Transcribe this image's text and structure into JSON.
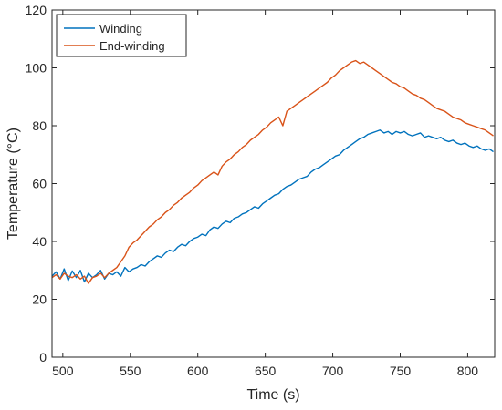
{
  "chart_data": {
    "type": "line",
    "xlabel": "Time (s)",
    "ylabel": "Temperature (°C)",
    "xlim": [
      492,
      820
    ],
    "ylim": [
      0,
      120
    ],
    "xticks": [
      500,
      550,
      600,
      650,
      700,
      750,
      800
    ],
    "yticks": [
      0,
      20,
      40,
      60,
      80,
      100,
      120
    ],
    "grid": false,
    "legend_position": "top-left",
    "series": [
      {
        "name": "Winding",
        "color": "#0072BD",
        "x": [
          492,
          495,
          498,
          501,
          504,
          507,
          510,
          513,
          516,
          519,
          522,
          525,
          528,
          531,
          534,
          537,
          540,
          543,
          546,
          549,
          552,
          555,
          558,
          561,
          564,
          567,
          570,
          573,
          576,
          579,
          582,
          585,
          588,
          591,
          594,
          597,
          600,
          603,
          606,
          609,
          612,
          615,
          618,
          621,
          624,
          627,
          630,
          633,
          636,
          639,
          642,
          645,
          648,
          651,
          654,
          657,
          660,
          663,
          666,
          669,
          672,
          675,
          678,
          681,
          684,
          687,
          690,
          693,
          696,
          699,
          702,
          705,
          708,
          711,
          714,
          717,
          720,
          723,
          726,
          729,
          732,
          735,
          738,
          741,
          744,
          747,
          750,
          753,
          756,
          759,
          762,
          765,
          768,
          771,
          774,
          777,
          780,
          783,
          786,
          789,
          792,
          795,
          798,
          801,
          804,
          807,
          810,
          813,
          816,
          819
        ],
        "y": [
          28.0,
          29.5,
          27.0,
          30.5,
          26.5,
          29.8,
          27.5,
          30.0,
          26.0,
          29.0,
          27.5,
          28.5,
          30.0,
          27.0,
          29.0,
          28.5,
          29.5,
          28.0,
          31.0,
          29.5,
          30.5,
          31.0,
          32.0,
          31.5,
          33.0,
          34.0,
          35.0,
          34.5,
          36.0,
          37.0,
          36.5,
          38.0,
          39.0,
          38.5,
          40.0,
          41.0,
          41.5,
          42.5,
          42.0,
          44.0,
          45.0,
          44.5,
          46.0,
          47.0,
          46.5,
          48.0,
          48.5,
          49.5,
          50.0,
          51.0,
          52.0,
          51.5,
          53.0,
          54.0,
          55.0,
          56.0,
          56.5,
          58.0,
          59.0,
          59.5,
          60.5,
          61.5,
          62.0,
          62.5,
          64.0,
          65.0,
          65.5,
          66.5,
          67.5,
          68.5,
          69.5,
          70.0,
          71.5,
          72.5,
          73.5,
          74.5,
          75.5,
          76.0,
          77.0,
          77.5,
          78.0,
          78.5,
          77.5,
          78.0,
          77.0,
          78.0,
          77.5,
          78.0,
          77.0,
          76.5,
          77.0,
          77.5,
          76.0,
          76.5,
          76.0,
          75.5,
          76.0,
          75.0,
          74.5,
          75.0,
          74.0,
          73.5,
          74.0,
          73.0,
          72.5,
          73.0,
          72.0,
          71.5,
          72.0,
          71.0
        ]
      },
      {
        "name": "End-winding",
        "color": "#D95319",
        "x": [
          492,
          495,
          498,
          501,
          504,
          507,
          510,
          513,
          516,
          519,
          522,
          525,
          528,
          531,
          534,
          537,
          540,
          543,
          546,
          549,
          552,
          555,
          558,
          561,
          564,
          567,
          570,
          573,
          576,
          579,
          582,
          585,
          588,
          591,
          594,
          597,
          600,
          603,
          606,
          609,
          612,
          615,
          618,
          621,
          624,
          627,
          630,
          633,
          636,
          639,
          642,
          645,
          648,
          651,
          654,
          657,
          660,
          663,
          666,
          669,
          672,
          675,
          678,
          681,
          684,
          687,
          690,
          693,
          696,
          699,
          702,
          705,
          708,
          711,
          714,
          717,
          720,
          723,
          726,
          729,
          732,
          735,
          738,
          741,
          744,
          747,
          750,
          753,
          756,
          759,
          762,
          765,
          768,
          771,
          774,
          777,
          780,
          783,
          786,
          789,
          792,
          795,
          798,
          801,
          804,
          807,
          810,
          813,
          816,
          819
        ],
        "y": [
          27.5,
          28.5,
          27.0,
          29.0,
          28.0,
          27.5,
          28.5,
          27.0,
          28.0,
          25.5,
          27.5,
          28.0,
          29.0,
          27.5,
          29.0,
          30.0,
          31.0,
          33.0,
          35.0,
          38.0,
          39.5,
          40.5,
          42.0,
          43.5,
          45.0,
          46.0,
          47.5,
          48.5,
          50.0,
          51.0,
          52.5,
          53.5,
          55.0,
          56.0,
          57.0,
          58.5,
          59.5,
          61.0,
          62.0,
          63.0,
          64.0,
          63.0,
          66.0,
          67.5,
          68.5,
          70.0,
          71.0,
          72.5,
          73.5,
          75.0,
          76.0,
          77.0,
          78.5,
          79.5,
          81.0,
          82.0,
          83.0,
          80.0,
          85.0,
          86.0,
          87.0,
          88.0,
          89.0,
          90.0,
          91.0,
          92.0,
          93.0,
          94.0,
          95.0,
          96.5,
          97.5,
          99.0,
          100.0,
          101.0,
          102.0,
          102.5,
          101.5,
          102.0,
          101.0,
          100.0,
          99.0,
          98.0,
          97.0,
          96.0,
          95.0,
          94.5,
          93.5,
          93.0,
          92.0,
          91.0,
          90.5,
          89.5,
          89.0,
          88.0,
          87.0,
          86.0,
          85.5,
          85.0,
          84.0,
          83.0,
          82.5,
          82.0,
          81.0,
          80.5,
          80.0,
          79.5,
          79.0,
          78.5,
          77.5,
          76.5
        ]
      }
    ]
  }
}
